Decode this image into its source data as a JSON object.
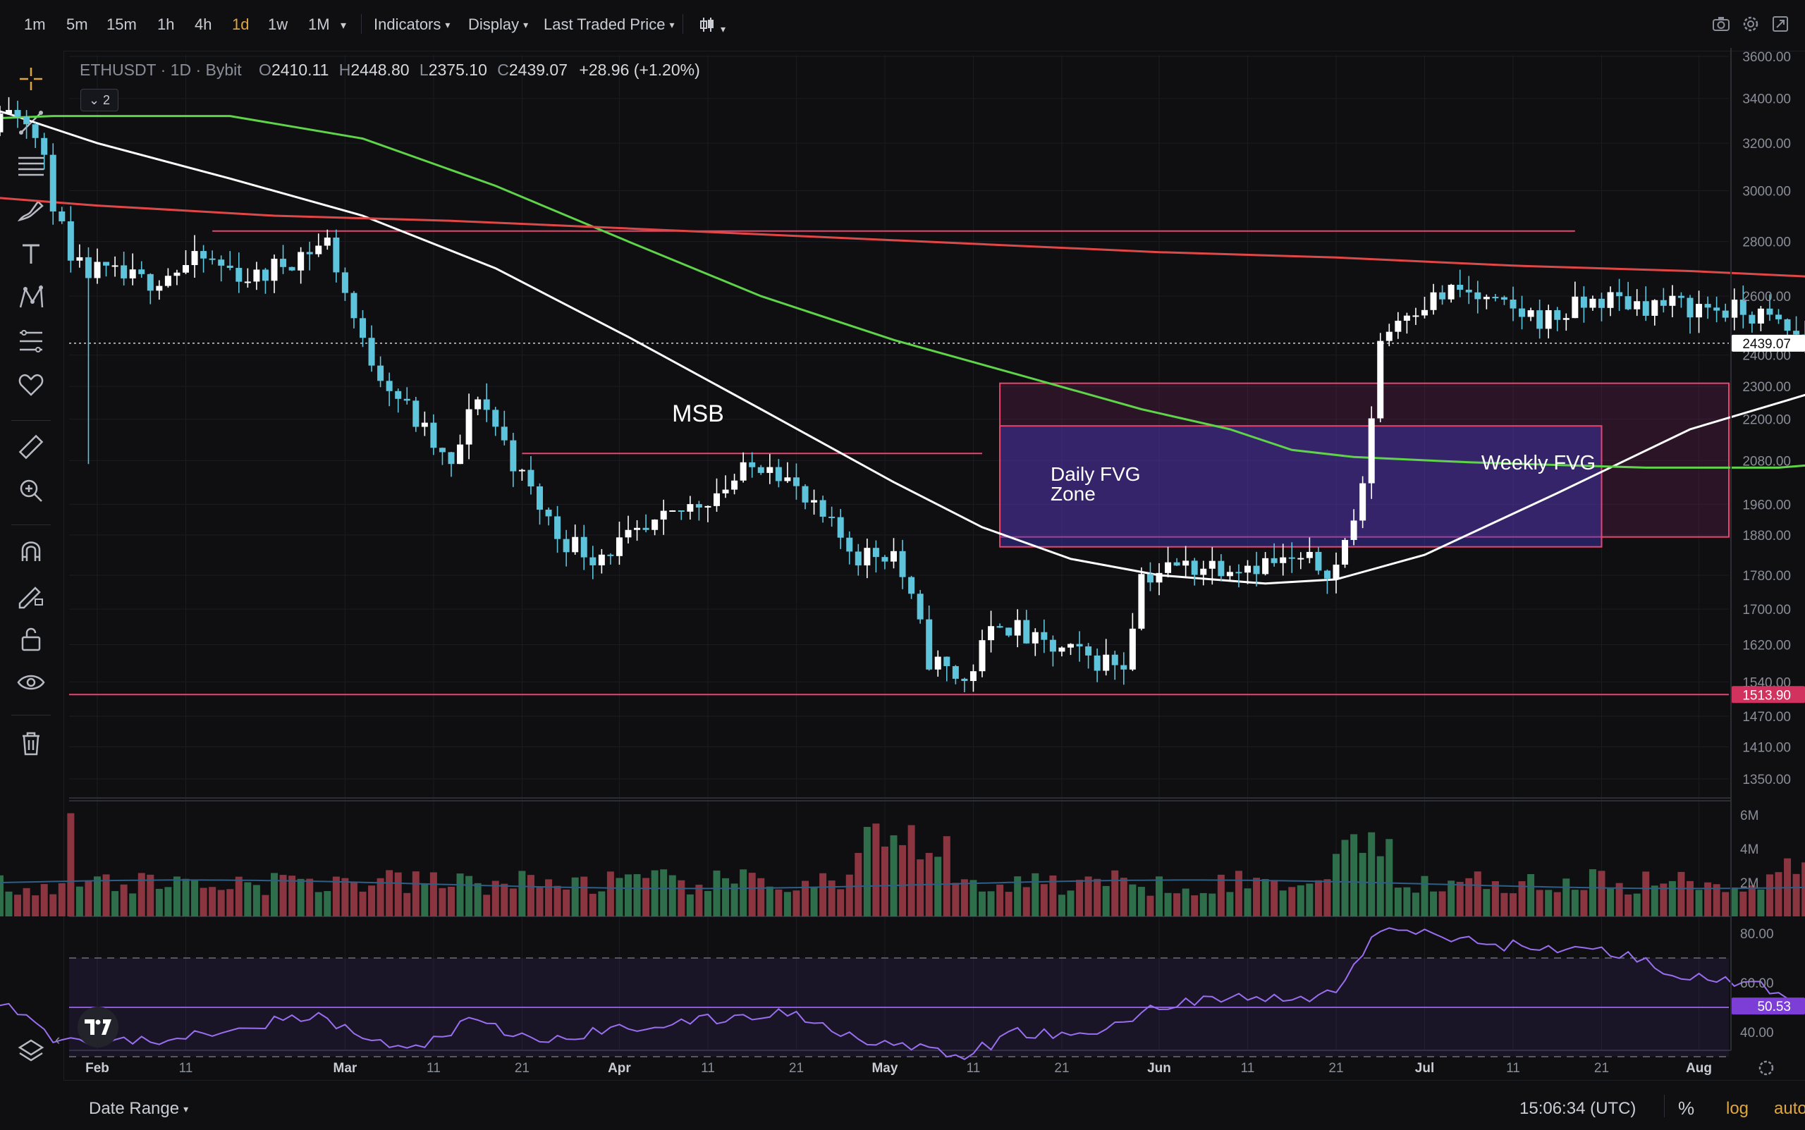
{
  "toolbar": {
    "timeframes": [
      "1m",
      "5m",
      "15m",
      "1h",
      "4h",
      "1d",
      "1w",
      "1M"
    ],
    "active_timeframe": "1d",
    "more_caret": "▾",
    "indicators_label": "Indicators",
    "display_label": "Display",
    "price_source_label": "Last Traded Price",
    "caret": "▾"
  },
  "legend": {
    "symbol": "ETHUSDT",
    "interval": "1D",
    "exchange": "Bybit",
    "separator": "·",
    "open_label": "O",
    "open": "2410.11",
    "high_label": "H",
    "high": "2448.80",
    "low_label": "L",
    "low": "2375.10",
    "close_label": "C",
    "close": "2439.07",
    "change": "+28.96 (+1.20%)",
    "collapse_count": "2"
  },
  "bottom": {
    "date_range_label": "Date Range",
    "clock": "15:06:34 (UTC)",
    "percent_label": "%",
    "log_label": "log",
    "auto_label": "auto"
  },
  "colors": {
    "background": "#0f0f12",
    "bull": "#ffffff",
    "bear": "#5ec4dc",
    "ma_fast": "#ffffff",
    "ma_mid": "#5fd34a",
    "ma_slow": "#e04848",
    "level_line": "#e8456e",
    "rsi": "#9a6ef0",
    "vol_up": "#2f6e4a",
    "vol_down": "#8a3540",
    "accent": "#e0a63d"
  },
  "chart_data": [
    {
      "type": "candlestick",
      "title": "ETHUSDT · 1D · Bybit",
      "y_scale": "log",
      "ylim": [
        1300,
        3700
      ],
      "price_ticks": [
        "3600.00",
        "3400.00",
        "3200.00",
        "3000.00",
        "2800.00",
        "2600.00",
        "2400.00",
        "2300.00",
        "2200.00",
        "2080.00",
        "1960.00",
        "1880.00",
        "1780.00",
        "1700.00",
        "1620.00",
        "1540.00",
        "1470.00",
        "1410.00",
        "1350.00"
      ],
      "time_ticks": [
        "Feb",
        "11",
        "Mar",
        "11",
        "21",
        "Apr",
        "11",
        "21",
        "May",
        "11",
        "21",
        "Jun",
        "11",
        "21",
        "Jul",
        "11",
        "21",
        "Aug"
      ],
      "current_price_label": "2439.07",
      "current_price": 2439.07,
      "support_level_label": "1513.90",
      "support_level": 1513.9,
      "grid": true,
      "annotations": [
        {
          "text": "MSB"
        },
        {
          "text": "Daily FVG\nZone",
          "type": "box",
          "low": 1850,
          "high": 2180
        },
        {
          "text": "Weekly FVG",
          "type": "box",
          "low": 1875,
          "high": 2310
        }
      ],
      "resistance_level": 2840,
      "msb_level": 2100,
      "moving_averages": [
        "white",
        "green",
        "red"
      ]
    },
    {
      "type": "bar",
      "title": "Volume",
      "ticks": [
        "6M",
        "4M",
        "2M"
      ],
      "ylim": [
        0,
        6500000
      ]
    },
    {
      "type": "line",
      "title": "RSI",
      "ticks": [
        "80.00",
        "60.00",
        "40.00"
      ],
      "upper_band": 70,
      "lower_band": 30,
      "last_value_label": "50.53",
      "last_value": 50.53,
      "ylim": [
        20,
        90
      ]
    }
  ]
}
